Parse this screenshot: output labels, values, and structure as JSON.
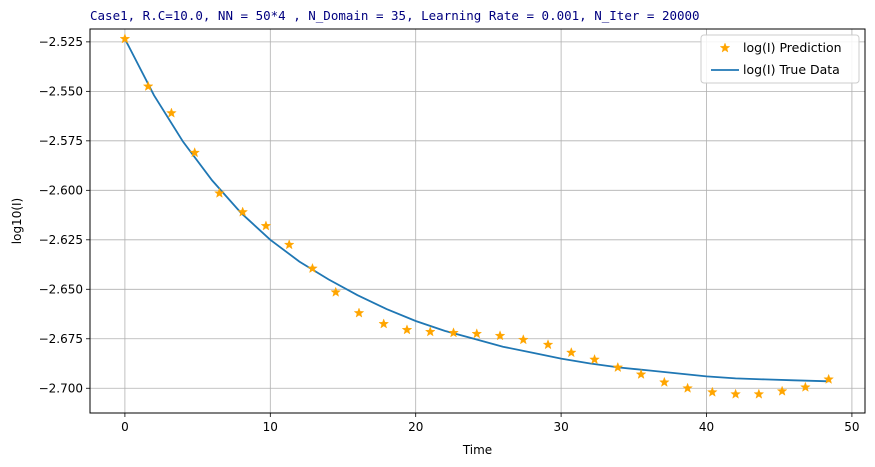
{
  "chart_data": {
    "type": "line+scatter",
    "title": "Case1, R.C=10.0, NN = 50*4 , N_Domain = 35, Learning Rate = 0.001, N_Iter = 20000",
    "xlabel": "Time",
    "ylabel": "log10(I)",
    "xlim": [
      -2.4,
      50.9
    ],
    "ylim": [
      -2.7125,
      -2.5185
    ],
    "xticks": [
      0,
      10,
      20,
      30,
      40,
      50
    ],
    "yticks": [
      -2.525,
      -2.55,
      -2.575,
      -2.6,
      -2.625,
      -2.65,
      -2.675,
      -2.7
    ],
    "xtick_labels": [
      "0",
      "10",
      "20",
      "30",
      "40",
      "50"
    ],
    "ytick_labels": [
      "−2.525",
      "−2.550",
      "−2.575",
      "−2.600",
      "−2.625",
      "−2.650",
      "−2.675",
      "−2.700"
    ],
    "grid": true,
    "legend_position": "top-right",
    "colors": {
      "prediction": "#ffa500",
      "true_data": "#1f77b4",
      "title": "#00007f",
      "grid": "#b0b0b0"
    },
    "series": [
      {
        "name": "log(I) Prediction",
        "kind": "scatter",
        "marker": "star",
        "x": [
          0.0,
          1.6,
          3.2,
          4.8,
          6.5,
          8.1,
          9.7,
          11.3,
          12.9,
          14.5,
          16.1,
          17.8,
          19.4,
          21.0,
          22.6,
          24.2,
          25.8,
          27.4,
          29.1,
          30.7,
          32.3,
          33.9,
          35.5,
          37.1,
          38.7,
          40.4,
          42.0,
          43.6,
          45.2,
          46.8,
          48.4
        ],
        "y": [
          -2.5235,
          -2.5475,
          -2.561,
          -2.581,
          -2.6015,
          -2.611,
          -2.618,
          -2.6275,
          -2.6395,
          -2.6515,
          -2.662,
          -2.6675,
          -2.6705,
          -2.6715,
          -2.672,
          -2.6725,
          -2.6735,
          -2.6755,
          -2.678,
          -2.682,
          -2.6855,
          -2.6895,
          -2.693,
          -2.697,
          -2.7,
          -2.702,
          -2.703,
          -2.703,
          -2.7015,
          -2.6995,
          -2.6955
        ]
      },
      {
        "name": "log(I) True Data",
        "kind": "line",
        "x": [
          0,
          2,
          4,
          6,
          8,
          10,
          12,
          14,
          16,
          18,
          20,
          22,
          24,
          26,
          28,
          30,
          32,
          34,
          36,
          38,
          40,
          42,
          44,
          46,
          48.4
        ],
        "y": [
          -2.5235,
          -2.552,
          -2.5755,
          -2.595,
          -2.6115,
          -2.625,
          -2.636,
          -2.645,
          -2.653,
          -2.66,
          -2.666,
          -2.671,
          -2.675,
          -2.679,
          -2.682,
          -2.685,
          -2.6875,
          -2.6895,
          -2.691,
          -2.6925,
          -2.694,
          -2.695,
          -2.6955,
          -2.696,
          -2.6965
        ]
      }
    ]
  }
}
